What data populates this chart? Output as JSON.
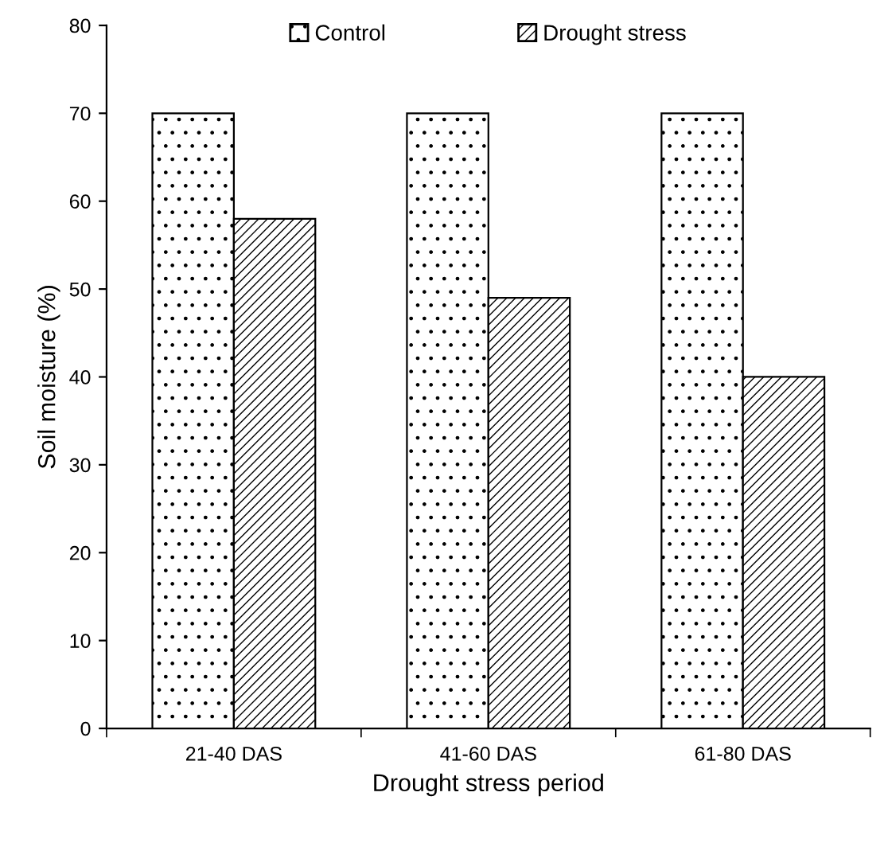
{
  "chart_data": {
    "type": "bar",
    "xlabel": "Drought stress period",
    "ylabel": "Soil moisture (%)",
    "categories": [
      "21-40 DAS",
      "41-60 DAS",
      "61-80 DAS"
    ],
    "series": [
      {
        "name": "Control",
        "color": "#000000",
        "values": [
          70,
          70,
          70
        ]
      },
      {
        "name": "Drought stress",
        "color": "#000000",
        "values": [
          58,
          49,
          40
        ]
      }
    ],
    "ylim": [
      0,
      80
    ],
    "yticks": [
      0,
      10,
      20,
      30,
      40,
      50,
      60,
      70,
      80
    ],
    "grid": false,
    "legend": "top"
  }
}
